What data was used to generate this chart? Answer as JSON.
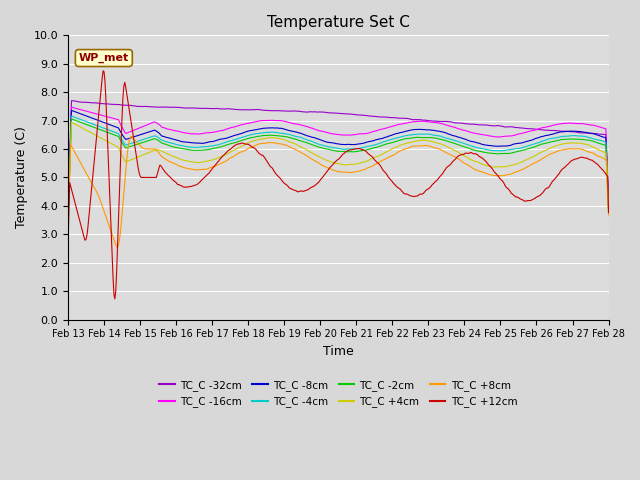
{
  "title": "Temperature Set C",
  "xlabel": "Time",
  "ylabel": "Temperature (C)",
  "ylim": [
    0.0,
    10.0
  ],
  "yticks": [
    0.0,
    1.0,
    2.0,
    3.0,
    4.0,
    5.0,
    6.0,
    7.0,
    8.0,
    9.0,
    10.0
  ],
  "series": [
    {
      "label": "TC_C -32cm",
      "color": "#9900cc"
    },
    {
      "label": "TC_C -16cm",
      "color": "#ff00ff"
    },
    {
      "label": "TC_C -8cm",
      "color": "#0000cc"
    },
    {
      "label": "TC_C -4cm",
      "color": "#00cccc"
    },
    {
      "label": "TC_C -2cm",
      "color": "#00cc00"
    },
    {
      "label": "TC_C +4cm",
      "color": "#cccc00"
    },
    {
      "label": "TC_C +8cm",
      "color": "#ff9900"
    },
    {
      "label": "TC_C +12cm",
      "color": "#cc0000"
    }
  ],
  "annotation_text": "WP_met",
  "xtick_labels": [
    "Feb 13",
    "Feb 14",
    "Feb 15",
    "Feb 16",
    "Feb 17",
    "Feb 18",
    "Feb 19",
    "Feb 20",
    "Feb 21",
    "Feb 22",
    "Feb 23",
    "Feb 24",
    "Feb 25",
    "Feb 26",
    "Feb 27",
    "Feb 28"
  ],
  "n_points": 600
}
